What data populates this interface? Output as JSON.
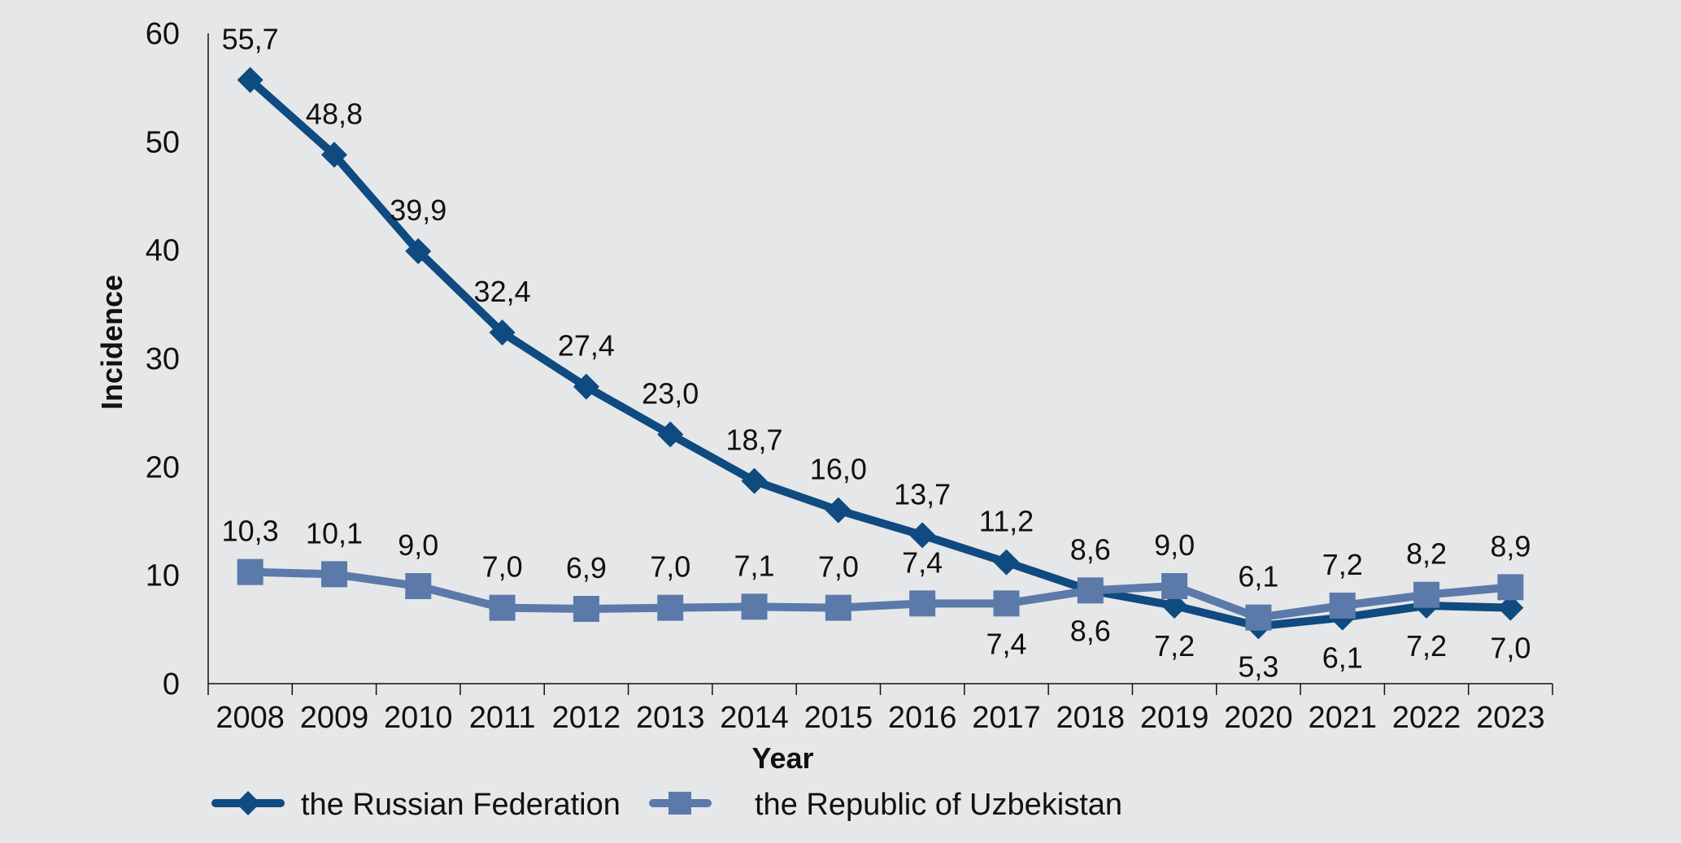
{
  "chart_data": {
    "type": "line",
    "title": "",
    "xlabel": "Year",
    "ylabel": "Incidence",
    "ylim": [
      0,
      60
    ],
    "yticks": [
      "0",
      "10",
      "20",
      "30",
      "40",
      "50",
      "60"
    ],
    "grid": false,
    "legend_position": "bottom-left",
    "categories": [
      "2008",
      "2009",
      "2010",
      "2011",
      "2012",
      "2013",
      "2014",
      "2015",
      "2016",
      "2017",
      "2018",
      "2019",
      "2020",
      "2021",
      "2022",
      "2023"
    ],
    "series": [
      {
        "name": "the Russian Federation",
        "marker": "diamond",
        "color": "#0f4a80",
        "values": [
          55.7,
          48.8,
          39.9,
          32.4,
          27.4,
          23.0,
          18.7,
          16.0,
          13.7,
          11.2,
          8.6,
          7.2,
          5.3,
          6.1,
          7.2,
          7.0
        ],
        "labels": [
          "55,7",
          "48,8",
          "39,9",
          "32,4",
          "27,4",
          "23,0",
          "18,7",
          "16,0",
          "13,7",
          "11,2",
          "8,6",
          "7,2",
          "5,3",
          "6,1",
          "7,2",
          "7,0"
        ],
        "label_side": [
          "above",
          "above",
          "above",
          "above",
          "above",
          "above",
          "above",
          "above",
          "above",
          "above",
          "below",
          "below",
          "below",
          "below",
          "below",
          "below"
        ]
      },
      {
        "name": "the Republic of Uzbekistan",
        "marker": "square",
        "color": "#5b7aaa",
        "values": [
          10.3,
          10.1,
          9.0,
          7.0,
          6.9,
          7.0,
          7.1,
          7.0,
          7.4,
          7.4,
          8.6,
          9.0,
          6.1,
          7.2,
          8.2,
          8.9
        ],
        "labels": [
          "10,3",
          "10,1",
          "9,0",
          "7,0",
          "6,9",
          "7,0",
          "7,1",
          "7,0",
          "7,4",
          "7,4",
          "8,6",
          "9,0",
          "6,1",
          "7,2",
          "8,2",
          "8,9"
        ],
        "label_side": [
          "above",
          "above",
          "above",
          "above",
          "above",
          "above",
          "above",
          "above",
          "above",
          "below",
          "above",
          "above",
          "above",
          "above",
          "above",
          "above"
        ]
      }
    ]
  }
}
